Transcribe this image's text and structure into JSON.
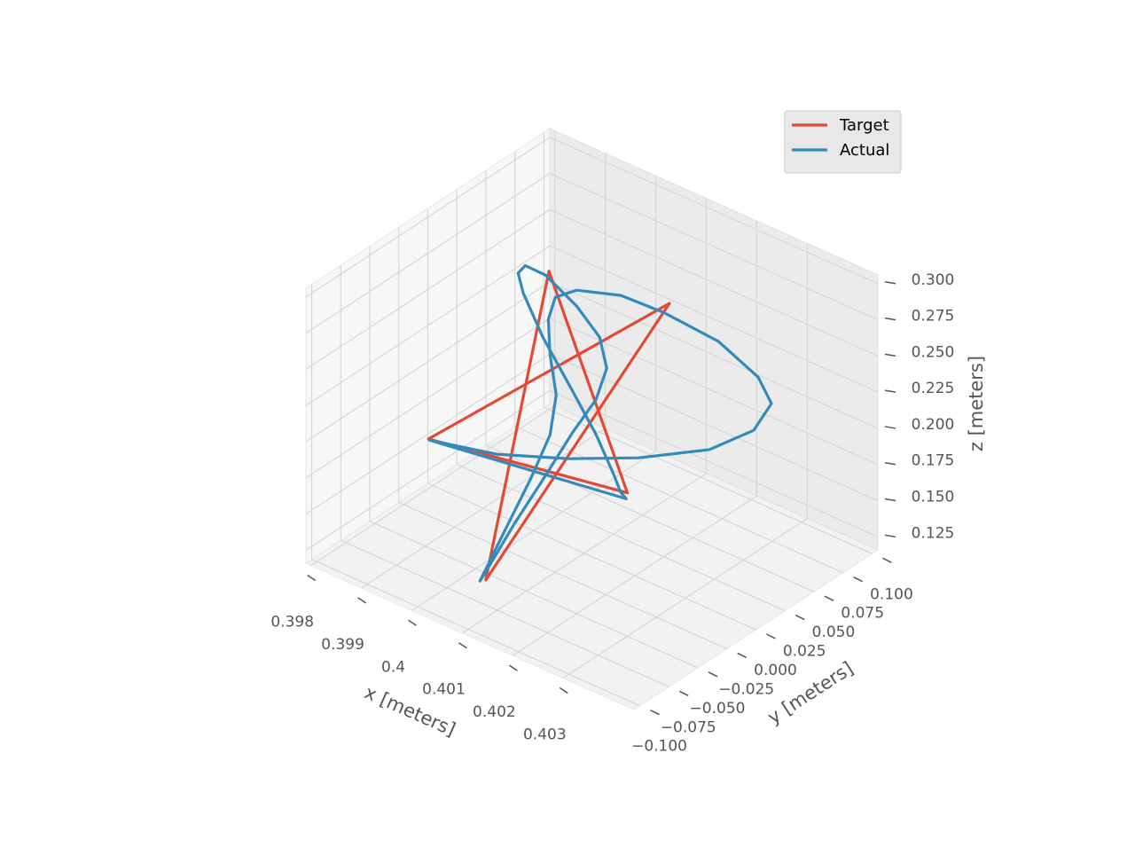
{
  "chart_data": {
    "type": "line3d",
    "xlabel": "x [meters]",
    "ylabel": "y [meters]",
    "zlabel": "z [meters]",
    "xlim": [
      0.3979,
      0.4044
    ],
    "ylim": [
      -0.105,
      0.105
    ],
    "zlim": [
      0.116,
      0.306
    ],
    "xticks": [
      0.398,
      0.399,
      0.4,
      0.401,
      0.402,
      0.403
    ],
    "xtick_labels_note_free": null,
    "yticks": [
      {
        "value": -0.1,
        "label": "−0.100"
      },
      {
        "value": -0.075,
        "label": "−0.075"
      },
      {
        "value": -0.05,
        "label": "−0.050"
      },
      {
        "value": -0.025,
        "label": "−0.025"
      },
      {
        "value": 0,
        "label": "0.000"
      },
      {
        "value": 0.025,
        "label": "0.025"
      },
      {
        "value": 0.05,
        "label": "0.050"
      },
      {
        "value": 0.075,
        "label": "0.075"
      },
      {
        "value": 0.1,
        "label": "0.100"
      }
    ],
    "zticks": [
      0.125,
      {
        "value": 0.15,
        "label": "0.150"
      },
      0.175,
      {
        "value": 0.2,
        "label": "0.200"
      },
      0.225,
      {
        "value": 0.25,
        "label": "0.250"
      },
      0.275,
      {
        "value": 0.3,
        "label": "0.300"
      }
    ],
    "grid": true,
    "legend": "upper right",
    "series": [
      {
        "name": "Target",
        "color": "#E24A33",
        "x": [
          0.4003,
          0.4005,
          0.4001,
          0.4005,
          0.4004,
          0.4003
        ],
        "y": [
          0,
          0.0588,
          -0.0951,
          0.0951,
          -0.0588,
          0
        ],
        "z": [
          0.3,
          0.119,
          0.2309,
          0.2309,
          0.119,
          0.3
        ]
      },
      {
        "name": "Actual",
        "color": "#348ABD",
        "x": [
          0.40031,
          0.40031,
          0.40031,
          0.40031,
          0.4018,
          0.40258,
          0.40297,
          0.40258,
          0.4018,
          0.40083,
          0.40031,
          0.40031,
          0.40031,
          0.40031,
          0.40031,
          0.40031,
          0.40031,
          0.40031,
          0.40031,
          0.40031,
          0.40031,
          0.40031,
          0.40031,
          0.40031,
          0.40031,
          0.40031,
          0.40031,
          0.40031,
          0.40031,
          0.40005,
          0.39953,
          0.39985,
          0.40031,
          0.40031,
          0.40031,
          0.4005,
          0.40063,
          0.40083,
          0.40031
        ],
        "y": [
          -0.1034,
          -0.0454,
          0.0157,
          0.0768,
          0.0729,
          0.0772,
          0.0755,
          0.081,
          0.0806,
          0.0756,
          0.0616,
          0.0234,
          0.005,
          -0.001,
          0.0005,
          0.0058,
          0.0005,
          -0.0163,
          -0.0392,
          -0.0599,
          -0.0515,
          -0.0301,
          -0.0057,
          0.0196,
          0.0402,
          0.0493,
          0.0432,
          0.0234,
          -0.0034,
          -0.0096,
          0.0069,
          -0.0027,
          -0.0057,
          0.0196,
          0.0402,
          0.047,
          0.0474,
          0.0435,
          -0.1034
        ],
        "z": [
          0.2377,
          0.1975,
          0.1623,
          0.1308,
          0.1617,
          0.1849,
          0.2104,
          0.2197,
          0.2325,
          0.24,
          0.251,
          0.2747,
          0.2795,
          0.2673,
          0.242,
          0.2116,
          0.1868,
          0.165,
          0.1403,
          0.1174,
          0.124,
          0.1416,
          0.159,
          0.178,
          0.1905,
          0.2071,
          0.2318,
          0.2637,
          0.2992,
          0.305,
          0.283,
          0.2795,
          0.2575,
          0.2074,
          0.166,
          0.138,
          0.1275,
          0.1281,
          0.2377
        ]
      }
    ]
  }
}
